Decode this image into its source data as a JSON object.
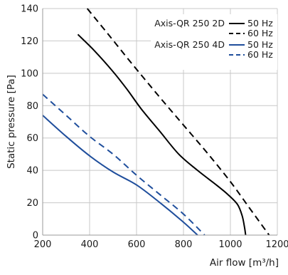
{
  "chart_data": {
    "type": "line",
    "xlabel": "Air flow [m³/h]",
    "ylabel": "Static pressure [Pa]",
    "xlim": [
      200,
      1200
    ],
    "ylim": [
      0,
      140
    ],
    "x_ticks": [
      200,
      400,
      600,
      800,
      1000,
      1200
    ],
    "x_tick_labels": [
      "200",
      "400",
      "600",
      "800",
      "1000",
      "1200"
    ],
    "y_ticks": [
      0,
      20,
      40,
      60,
      80,
      100,
      120,
      140
    ],
    "y_tick_labels": [
      "0",
      "20",
      "40",
      "60",
      "80",
      "100",
      "120",
      "140"
    ],
    "grid": true,
    "legend_placement": "top-right",
    "legend_groups": [
      {
        "label": "Axis-QR 250 2D"
      },
      {
        "label": "Axis-QR 250 4D"
      }
    ],
    "series": [
      {
        "name": "50 Hz",
        "group": 0,
        "color": "#000000",
        "dash": "solid",
        "x": [
          350,
          420,
          500,
          560,
          620,
          700,
          780,
          860,
          940,
          990,
          1030,
          1050,
          1060,
          1065
        ],
        "y": [
          124,
          114,
          101,
          90,
          78,
          64,
          50,
          40,
          31,
          25,
          19,
          12,
          5,
          0
        ]
      },
      {
        "name": "60 Hz",
        "group": 0,
        "color": "#000000",
        "dash": "dashed",
        "x": [
          390,
          480,
          580,
          700,
          800,
          900,
          1000,
          1080,
          1130,
          1165
        ],
        "y": [
          140,
          124,
          106,
          85,
          68,
          51,
          33,
          17,
          7,
          0
        ]
      },
      {
        "name": "50 Hz",
        "group": 1,
        "color": "#1f4e9c",
        "dash": "solid",
        "x": [
          200,
          300,
          400,
          500,
          600,
          700,
          800,
          860
        ],
        "y": [
          74,
          61,
          49,
          39,
          31,
          20,
          8,
          0
        ]
      },
      {
        "name": "60 Hz",
        "group": 1,
        "color": "#1f4e9c",
        "dash": "dashed",
        "x": [
          200,
          300,
          400,
          500,
          600,
          700,
          800,
          890
        ],
        "y": [
          87,
          74,
          61,
          50,
          37,
          25,
          13,
          0
        ]
      }
    ]
  }
}
